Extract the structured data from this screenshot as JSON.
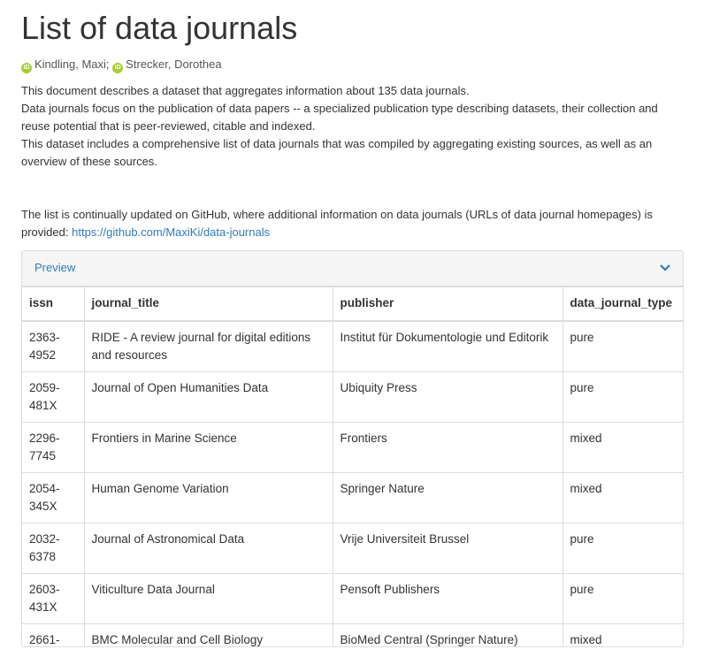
{
  "header": {
    "title": "List of data journals"
  },
  "authors": [
    "Kindling, Maxi;",
    "Strecker, Dorothea"
  ],
  "paragraphs": [
    "This document describes a dataset that aggregates information about 135 data journals.",
    "Data journals focus on the publication of data papers -- a specialized publication type describing datasets, their collection and reuse potential that is peer-reviewed, citable and indexed.",
    "This dataset includes a comprehensive list of data journals that was compiled by aggregating existing sources, as well as an overview of these sources."
  ],
  "update_note": {
    "text": "The list is continually updated on GitHub, where additional information on data journals (URLs of data journal homepages) is provided:",
    "link": "https://github.com/MaxiKi/data-journals"
  },
  "preview": {
    "label": "Preview"
  },
  "table": {
    "columns": [
      "issn",
      "journal_title",
      "publisher",
      "data_journal_type"
    ],
    "rows": [
      [
        "2363-4952",
        "RIDE - A review journal for digital editions and resources",
        "Institut für Dokumentologie und Editorik",
        "pure"
      ],
      [
        "2059-481X",
        "Journal of Open Humanities Data",
        "Ubiquity Press",
        "pure"
      ],
      [
        "2296-7745",
        "Frontiers in Marine Science",
        "Frontiers",
        "mixed"
      ],
      [
        "2054-345X",
        "Human Genome Variation",
        "Springer Nature",
        "mixed"
      ],
      [
        "2032-6378",
        "Journal of Astronomical Data",
        "Vrije Universiteit Brussel",
        "pure"
      ],
      [
        "2603-431X",
        "Viticulture Data Journal",
        "Pensoft Publishers",
        "pure"
      ],
      [
        "2661-",
        "BMC Molecular and Cell Biology",
        "BioMed Central (Springer Nature)",
        "mixed"
      ]
    ]
  }
}
